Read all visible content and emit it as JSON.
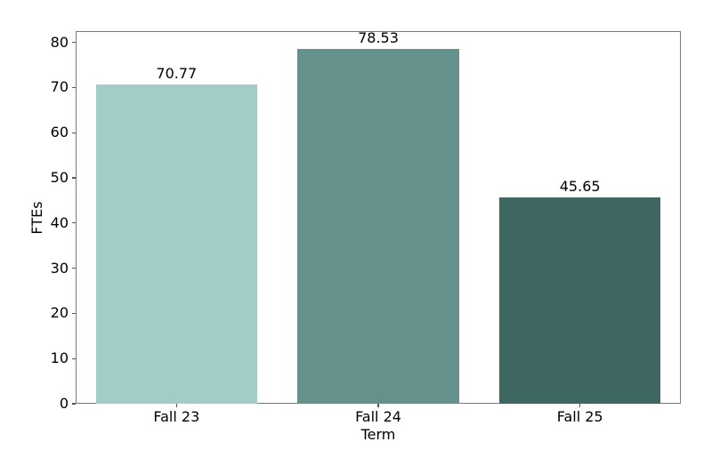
{
  "chart_data": {
    "type": "bar",
    "categories": [
      "Fall 23",
      "Fall 24",
      "Fall 25"
    ],
    "values": [
      70.77,
      78.53,
      45.65
    ],
    "value_labels": [
      "70.77",
      "78.53",
      "45.65"
    ],
    "bar_colors": [
      "#a2ccc7",
      "#64918c",
      "#3f6762"
    ],
    "title": "",
    "xlabel": "Term",
    "ylabel": "FTEs",
    "ylim": [
      0,
      82.5
    ],
    "yticks": [
      0,
      10,
      20,
      30,
      40,
      50,
      60,
      70,
      80
    ],
    "bar_width_fraction": 0.8,
    "grid": false,
    "legend": null
  },
  "style": {
    "background": "#ffffff",
    "spine_color": "#7a7a7a",
    "tick_color": "#555555",
    "text_color": "#000000"
  }
}
